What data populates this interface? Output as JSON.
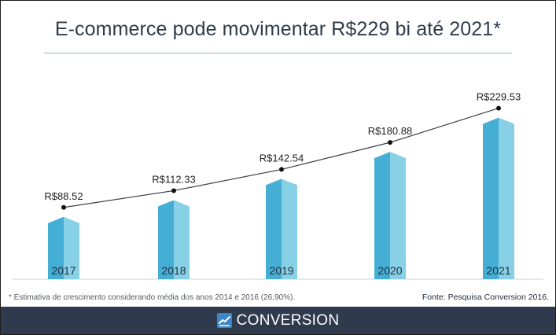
{
  "chart_data": {
    "type": "bar",
    "title": "E-commerce pode movimentar R$229 bi até 2021*",
    "categories": [
      "2017",
      "2018",
      "2019",
      "2020",
      "2021"
    ],
    "values": [
      88.52,
      112.33,
      142.54,
      180.88,
      229.53
    ],
    "value_labels": [
      "R$88.52",
      "R$112.33",
      "R$142.54",
      "R$180.88",
      "R$229.53"
    ],
    "xlabel": "",
    "ylabel": "",
    "ylim": [
      0,
      250
    ],
    "overlay": "line",
    "colors": {
      "bar_dark": "#44aed5",
      "bar_light": "#87d0e6",
      "line": "#3a3f4a",
      "marker": "#111111"
    }
  },
  "footnote": "* Estimativa de crescimento  considerando média dos anos 2014 e 2016 (26,90%).",
  "source": "Fonte: Pesquisa Conversion 2016.",
  "footer": {
    "brand": "CONVERSION",
    "brand_icon": "chart-trend-icon",
    "background": "#2f3a4d"
  }
}
